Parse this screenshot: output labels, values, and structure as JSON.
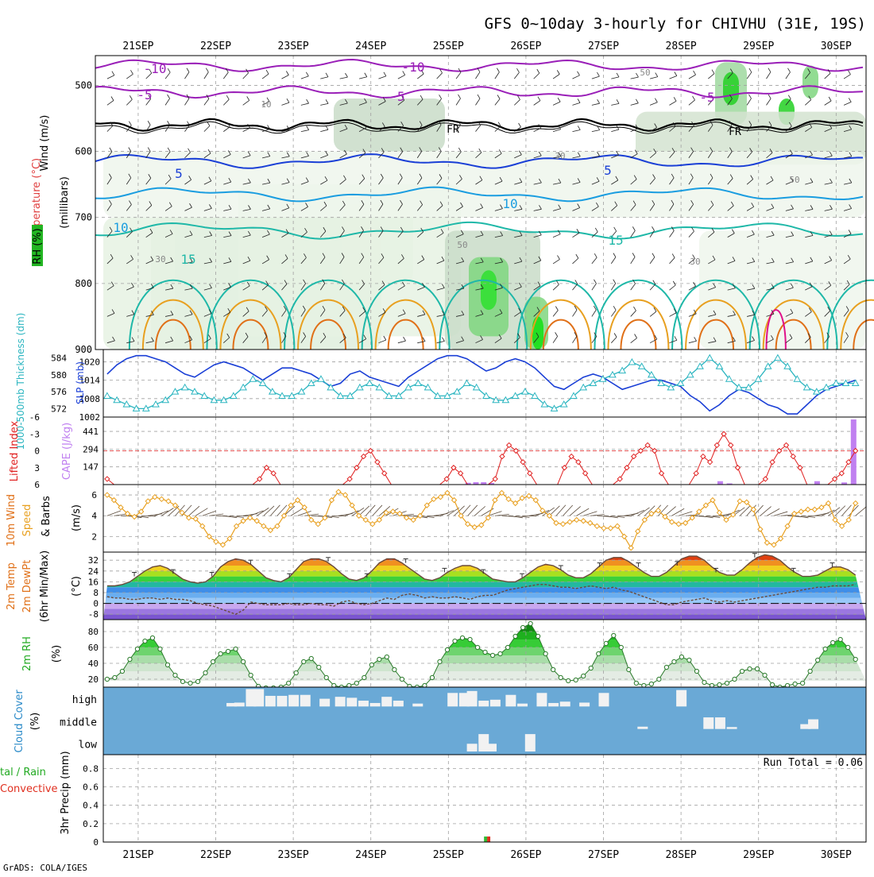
{
  "title": "GFS 0~10day 3-hourly for CHIVHU (31E, 19S)",
  "footer": "GrADS: COLA/IGES",
  "dates": [
    "21SEP",
    "22SEP",
    "23SEP",
    "24SEP",
    "25SEP",
    "26SEP",
    "27SEP",
    "28SEP",
    "29SEP",
    "30SEP"
  ],
  "colors": {
    "purple": "#9a1fb8",
    "blue": "#1a3fd6",
    "lightblue": "#1a9de0",
    "teal": "#1fb8a8",
    "orange": "#e8a020",
    "darkorange": "#e07018",
    "magenta": "#e0108a",
    "green": "#2acc2a",
    "cyan": "#2bb5c0",
    "red": "#e02020",
    "cape": "#c080f0",
    "cloudbg": "#6aa9d6"
  },
  "chart_data": [
    {
      "type": "heatmap",
      "name": "upper",
      "ylabels": {
        "wind": "Wind (m/s)",
        "temp": "Temperature (°C)",
        "rh": "RH (%)",
        "mb": "(millibars)"
      },
      "yticks": [
        500,
        600,
        700,
        800,
        900
      ],
      "contour_labels": [
        "-10",
        "-10",
        "-5",
        "-5",
        "-5",
        "FR",
        "FR",
        "5",
        "5",
        "10",
        "10",
        "15",
        "15",
        "50",
        "30",
        "10",
        "50",
        "30",
        "50",
        "30",
        "10"
      ]
    },
    {
      "type": "line",
      "name": "slp-thickness",
      "ylabel_left": "1000-500mb Thickness (dm)",
      "ylabel_right": "SLP (mb)",
      "yticks_left": [
        572,
        576,
        580,
        584
      ],
      "yticks_right": [
        1002,
        1008,
        1014,
        1020
      ],
      "slp": [
        1016,
        1019,
        1021,
        1022,
        1022,
        1021,
        1020,
        1018,
        1016,
        1015,
        1017,
        1019,
        1020,
        1019,
        1018,
        1016,
        1014,
        1016,
        1018,
        1018,
        1017,
        1016,
        1014,
        1012,
        1013,
        1016,
        1017,
        1015,
        1014,
        1013,
        1012,
        1015,
        1017,
        1019,
        1021,
        1022,
        1022,
        1021,
        1019,
        1017,
        1018,
        1020,
        1021,
        1020,
        1018,
        1015,
        1012,
        1011,
        1013,
        1015,
        1016,
        1015,
        1013,
        1011,
        1012,
        1013,
        1014,
        1014,
        1013,
        1012,
        1009,
        1007,
        1004,
        1006,
        1009,
        1011,
        1010,
        1008,
        1006,
        1005,
        1003,
        1003,
        1006,
        1009,
        1011,
        1012,
        1013,
        1014
      ],
      "thickness": [
        575,
        574,
        573,
        572,
        572,
        573,
        574,
        576,
        577,
        576,
        575,
        574,
        574,
        575,
        577,
        579,
        578,
        576,
        575,
        575,
        576,
        578,
        579,
        577,
        575,
        575,
        577,
        578,
        577,
        575,
        575,
        577,
        578,
        577,
        575,
        575,
        576,
        578,
        577,
        575,
        574,
        574,
        575,
        576,
        575,
        573,
        572,
        573,
        575,
        577,
        578,
        579,
        580,
        581,
        583,
        582,
        580,
        578,
        577,
        578,
        580,
        582,
        584,
        582,
        579,
        577,
        577,
        579,
        582,
        584,
        582,
        579,
        577,
        576,
        577,
        578,
        578,
        578
      ]
    },
    {
      "type": "bar",
      "name": "cape-li",
      "ylabel_left": "Lifted Index",
      "ylabel_right": "CAPE (J/kg)",
      "yticks_left": [
        6,
        3,
        0,
        -3,
        -6
      ],
      "yticks_right": [
        147,
        294,
        441
      ],
      "lifted_index": [
        5,
        6,
        6,
        6,
        6,
        6,
        6,
        6,
        6,
        6,
        6,
        6,
        6,
        6,
        6,
        6,
        6,
        6,
        6,
        6,
        6,
        6,
        5,
        3,
        4,
        6,
        6,
        6,
        6,
        6,
        6,
        6,
        6,
        6,
        6,
        5,
        3,
        1,
        0,
        2,
        4,
        6,
        6,
        6,
        6,
        6,
        6,
        6,
        6,
        5,
        3,
        4,
        6,
        6,
        6,
        6,
        5,
        1,
        -1,
        0,
        2,
        4,
        6,
        6,
        6,
        6,
        3,
        1,
        2,
        4,
        6,
        6,
        6,
        6,
        5,
        3,
        1,
        0,
        -1,
        0,
        4,
        6,
        6,
        6,
        6,
        4,
        1,
        2,
        -1,
        -3,
        -1,
        3,
        6,
        6,
        6,
        5,
        2,
        0,
        -1,
        1,
        3,
        6,
        6,
        6,
        6,
        5,
        4,
        2,
        0
      ],
      "cape_bars": [
        [
          25.25,
          15
        ],
        [
          25.35,
          20
        ],
        [
          25.45,
          20
        ],
        [
          25.55,
          14
        ],
        [
          28.5,
          28
        ],
        [
          28.62,
          10
        ],
        [
          29.75,
          28
        ],
        [
          30.1,
          18
        ],
        [
          30.22,
          540
        ]
      ]
    },
    {
      "type": "line",
      "name": "wind10m",
      "ylabel_top": "10m Wind",
      "ylabel_mid": "Speed",
      "ylabel_bot": "& Barbs",
      "yunit": "(m/s)",
      "yticks": [
        2,
        4,
        6
      ],
      "speed": [
        6.0,
        5.5,
        4.8,
        4.2,
        3.9,
        4.4,
        5.4,
        5.8,
        5.6,
        5.4,
        5.0,
        4.3,
        3.8,
        3.7,
        3.0,
        2.0,
        1.5,
        1.2,
        1.8,
        3.0,
        3.5,
        3.8,
        3.5,
        3.0,
        2.6,
        3.0,
        4.0,
        5.0,
        5.5,
        4.8,
        3.6,
        3.2,
        3.8,
        5.5,
        6.3,
        6.0,
        5.0,
        4.0,
        3.6,
        3.2,
        3.6,
        4.3,
        4.4,
        4.2,
        3.8,
        3.6,
        4.0,
        5.0,
        5.6,
        5.8,
        6.2,
        5.5,
        4.0,
        3.2,
        2.9,
        3.1,
        3.8,
        5.5,
        6.2,
        5.6,
        5.2,
        5.7,
        5.9,
        5.5,
        4.5,
        4.0,
        3.3,
        3.2,
        3.4,
        3.6,
        3.5,
        3.3,
        3.0,
        2.8,
        2.8,
        3.0,
        2.0,
        0.9,
        2.5,
        3.6,
        4.2,
        4.5,
        3.9,
        3.4,
        3.2,
        3.3,
        3.8,
        4.4,
        5.0,
        5.5,
        4.3,
        3.6,
        4.1,
        5.4,
        5.3,
        4.6,
        2.7,
        1.4,
        1.2,
        1.8,
        3.0,
        4.2,
        4.4,
        4.6,
        4.6,
        4.8,
        5.2,
        3.6,
        3.0,
        3.6,
        5.2
      ]
    },
    {
      "type": "area",
      "name": "temp2m",
      "ylabel_a": "2m Temp",
      "ylabel_b": "2m DewPt",
      "ylabel_c": "(6hr Min/Max)",
      "yunit": "(°C)",
      "yticks": [
        -8,
        0,
        8,
        16,
        24,
        32
      ],
      "temp": [
        13,
        13,
        14,
        16,
        20,
        24,
        27,
        28,
        26,
        22,
        18,
        16,
        15,
        16,
        20,
        27,
        31,
        33,
        32,
        29,
        24,
        19,
        17,
        16,
        19,
        25,
        31,
        33,
        33,
        31,
        27,
        22,
        18,
        17,
        19,
        24,
        30,
        33,
        33,
        30,
        26,
        22,
        18,
        17,
        19,
        23,
        26,
        28,
        28,
        26,
        22,
        18,
        17,
        16,
        16,
        19,
        23,
        27,
        29,
        28,
        25,
        21,
        19,
        19,
        22,
        27,
        32,
        34,
        34,
        31,
        27,
        23,
        20,
        20,
        23,
        28,
        33,
        35,
        35,
        32,
        27,
        23,
        21,
        21,
        25,
        30,
        34,
        36,
        35,
        32,
        27,
        23,
        20,
        20,
        21,
        24,
        27,
        27,
        25,
        21
      ],
      "dewpt": [
        5,
        4,
        4,
        3,
        3,
        4,
        4,
        3,
        4,
        3,
        3,
        2,
        0,
        -1,
        -2,
        -4,
        -6,
        -8,
        -5,
        1,
        0,
        -1,
        -1,
        -1,
        0,
        -1,
        -1,
        0,
        -1,
        -1,
        -2,
        1,
        2,
        0,
        -1,
        0,
        2,
        4,
        3,
        6,
        7,
        6,
        4,
        5,
        4,
        4,
        5,
        4,
        3,
        5,
        6,
        6,
        8,
        10,
        11,
        12,
        13,
        14,
        14,
        13,
        12,
        12,
        11,
        12,
        13,
        12,
        11,
        12,
        10,
        9,
        7,
        5,
        3,
        1,
        -1,
        -1,
        1,
        2,
        3,
        4,
        2,
        1,
        2,
        1,
        2,
        3,
        4,
        5,
        6,
        7,
        8,
        9,
        10,
        11,
        12,
        12,
        13,
        13,
        13,
        14
      ]
    },
    {
      "type": "area",
      "name": "rh2m",
      "ylabel": "2m RH",
      "yunit": "(%)",
      "yticks": [
        20,
        40,
        60,
        80
      ],
      "rh": [
        20,
        22,
        30,
        45,
        58,
        68,
        72,
        58,
        38,
        25,
        17,
        15,
        17,
        28,
        42,
        52,
        55,
        58,
        42,
        25,
        11,
        9,
        9,
        10,
        15,
        28,
        42,
        46,
        35,
        22,
        12,
        10,
        12,
        15,
        22,
        38,
        45,
        48,
        32,
        20,
        11,
        10,
        12,
        22,
        42,
        57,
        68,
        72,
        70,
        60,
        54,
        50,
        52,
        60,
        74,
        85,
        90,
        74,
        52,
        32,
        22,
        18,
        19,
        24,
        34,
        52,
        65,
        75,
        60,
        32,
        15,
        12,
        14,
        20,
        35,
        42,
        48,
        44,
        30,
        16,
        12,
        13,
        15,
        20,
        30,
        33,
        33,
        25,
        13,
        10,
        12,
        14,
        15,
        30,
        44,
        58,
        66,
        70,
        60,
        45
      ]
    },
    {
      "type": "bar",
      "name": "cloud",
      "ylabel": "Cloud Cover",
      "yunit": "(%)",
      "levels": [
        "high",
        "middle",
        "low"
      ],
      "high_bars": [
        [
          22.2,
          0.18
        ],
        [
          22.3,
          0.2
        ],
        [
          22.45,
          0.9
        ],
        [
          22.55,
          0.9
        ],
        [
          22.7,
          0.55
        ],
        [
          22.85,
          0.55
        ],
        [
          23.0,
          0.6
        ],
        [
          23.15,
          0.6
        ],
        [
          23.4,
          0.4
        ],
        [
          23.6,
          0.5
        ],
        [
          23.75,
          0.45
        ],
        [
          23.9,
          0.3
        ],
        [
          24.05,
          0.18
        ],
        [
          24.2,
          0.5
        ],
        [
          24.35,
          0.3
        ],
        [
          24.6,
          0.15
        ],
        [
          25.05,
          0.7
        ],
        [
          25.2,
          0.7
        ],
        [
          25.3,
          0.8
        ],
        [
          25.45,
          0.3
        ],
        [
          25.6,
          0.35
        ],
        [
          25.8,
          0.6
        ],
        [
          25.95,
          0.15
        ],
        [
          26.2,
          0.7
        ],
        [
          26.35,
          0.18
        ],
        [
          26.5,
          0.25
        ],
        [
          26.75,
          0.2
        ],
        [
          27.0,
          0.7
        ],
        [
          28.0,
          0.85
        ]
      ],
      "mid_bars": [
        [
          27.5,
          0.12
        ],
        [
          28.35,
          0.6
        ],
        [
          28.5,
          0.6
        ],
        [
          28.65,
          0.1
        ],
        [
          29.6,
          0.25
        ],
        [
          29.7,
          0.5
        ]
      ],
      "low_bars": [
        [
          25.3,
          0.4
        ],
        [
          25.45,
          0.9
        ],
        [
          25.55,
          0.4
        ],
        [
          26.05,
          0.9
        ]
      ]
    },
    {
      "type": "bar",
      "name": "precip",
      "ylabel_left_top": "tal / Rain",
      "ylabel_left_bot": "Convective",
      "ylabel": "3hr Precip (mm)",
      "yticks": [
        0,
        0.2,
        0.4,
        0.6,
        0.8
      ],
      "run_total": "Run Total =  0.06",
      "bars": [
        [
          25.48,
          0.06,
          "total"
        ],
        [
          25.52,
          0.06,
          "conv"
        ]
      ]
    }
  ]
}
